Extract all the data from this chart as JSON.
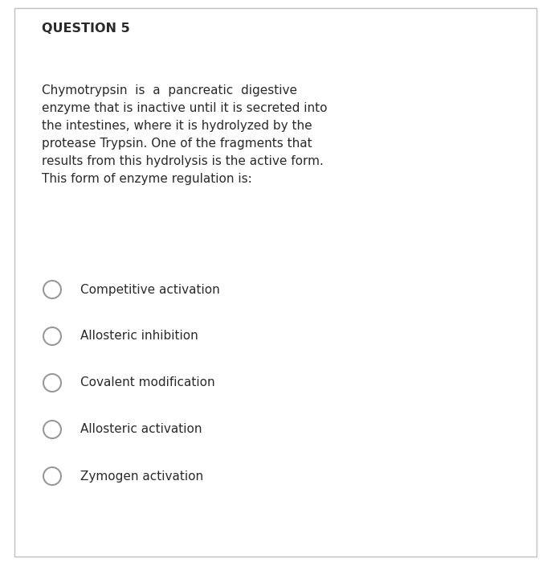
{
  "background_color": "#ffffff",
  "border_color": "#c0c0c0",
  "title": "QUESTION 5",
  "title_fontsize": 11.5,
  "title_bold": true,
  "paragraph_lines": [
    "Chymotrypsin  is  a  pancreatic  digestive",
    "enzyme that is inactive until it is secreted into",
    "the intestines, where it is hydrolyzed by the",
    "protease Trypsin. One of the fragments that",
    "results from this hydrolysis is the active form.",
    "This form of enzyme regulation is:"
  ],
  "paragraph_fontsize": 11.0,
  "options": [
    "Competitive activation",
    "Allosteric inhibition",
    "Covalent modification",
    "Allosteric activation",
    "Zymogen activation"
  ],
  "options_fontsize": 11.0,
  "circle_color": "#999999",
  "text_color": "#2a2a2a",
  "font_family": "DejaVu Sans"
}
